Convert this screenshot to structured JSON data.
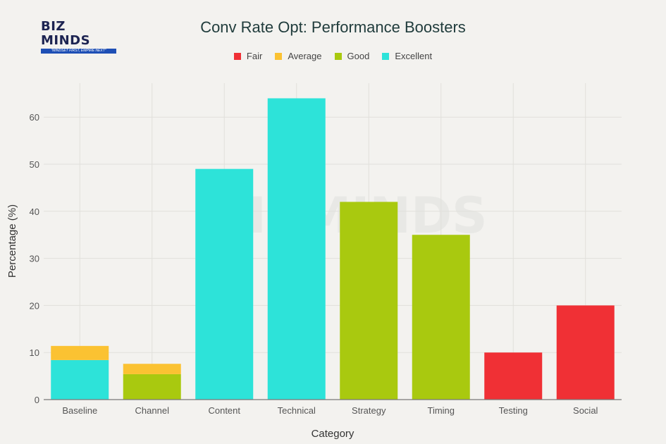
{
  "logo": {
    "name": "BIZ MINDS",
    "tagline": "\"MINDSET FIRST, EMPIRE NEXT\""
  },
  "watermark": "BIZMINDS",
  "chart_data": {
    "type": "bar",
    "stacked": true,
    "title": "Conv Rate Opt: Performance Boosters",
    "xlabel": "Category",
    "ylabel": "Percentage (%)",
    "ylim": [
      0,
      67
    ],
    "yticks": [
      0,
      10,
      20,
      30,
      40,
      50,
      60
    ],
    "grid": true,
    "legend_position": "top",
    "categories": [
      "Baseline",
      "Channel",
      "Content",
      "Technical",
      "Strategy",
      "Timing",
      "Testing",
      "Social"
    ],
    "series": [
      {
        "name": "Fair",
        "color": "#f03035",
        "values": [
          0,
          0,
          0,
          0,
          0,
          0,
          10,
          20
        ]
      },
      {
        "name": "Average",
        "color": "#fbc232",
        "values": [
          3,
          2.2,
          0,
          0,
          0,
          0,
          0,
          0
        ]
      },
      {
        "name": "Good",
        "color": "#a9c90f",
        "values": [
          0,
          5.4,
          0,
          0,
          42,
          35,
          0,
          0
        ]
      },
      {
        "name": "Excellent",
        "color": "#2de3d9",
        "values": [
          8.4,
          0,
          49,
          64,
          0,
          0,
          0,
          0
        ]
      }
    ],
    "stack_order": [
      "Excellent",
      "Good",
      "Average",
      "Fair"
    ]
  }
}
